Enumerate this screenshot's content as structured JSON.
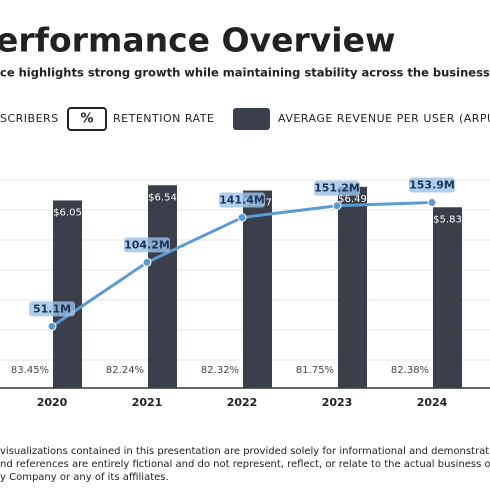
{
  "title": "erformance Overview",
  "subtitle": "ce highlights strong growth while maintaining stability across the business.",
  "chart_data": {
    "type": "combo",
    "categories": [
      "2020",
      "2021",
      "2022",
      "2023",
      "2024"
    ],
    "ylim": [
      0,
      7
    ],
    "y2lim": [
      0,
      180
    ],
    "series": [
      {
        "name": "AVERAGE REVENUE PER USER (ARPU)",
        "type": "bar",
        "color": "#3a3f4b",
        "values": [
          6.05,
          6.54,
          6.37,
          6.49,
          5.83
        ],
        "value_labels": [
          "$6.05",
          "$6.54",
          "$6.37",
          "$6.49",
          "$5.83"
        ]
      },
      {
        "name": "SCRIBERS",
        "type": "line",
        "axis": "y2",
        "color": "#5b9bd5",
        "values": [
          51.1,
          104.2,
          141.4,
          151.2,
          153.9
        ],
        "value_labels": [
          "51.1M",
          "104.2M",
          "141.4M",
          "151.2M",
          "153.9M"
        ]
      },
      {
        "name": "RETENTION RATE",
        "type": "text",
        "values": [
          83.45,
          82.24,
          82.32,
          81.75,
          82.38
        ],
        "value_labels": [
          "83.45%",
          "82.24%",
          "82.32%",
          "81.75%",
          "82.38%"
        ]
      }
    ],
    "legend_icon": "%"
  },
  "footer": [
    "visualizations contained in this presentation are provided solely for informational and demonstration purposes a",
    "nd references are entirely fictional and do not represent, reflect, or relate to the actual business operations,",
    "y Company or any of its affiliates."
  ]
}
